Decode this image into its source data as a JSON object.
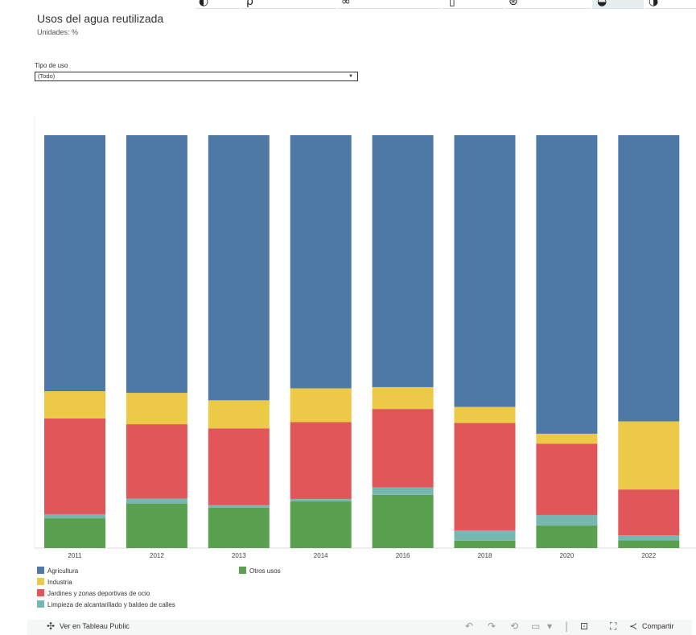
{
  "header": {
    "title": "Usos del agua reutilizada",
    "subtitle": "Unidades: %"
  },
  "filter": {
    "label": "Tipo de uso",
    "value": "(Todo)"
  },
  "legend": {
    "items": [
      {
        "label": "Agricultura",
        "color": "#4e79a7"
      },
      {
        "label": "Industria",
        "color": "#edc948"
      },
      {
        "label": "Jardines y zonas deportivas de ocio",
        "color": "#e15759"
      },
      {
        "label": "Limpieza de alcantarillado y baldeo de calles",
        "color": "#76b7b2"
      },
      {
        "label": "Otros usos",
        "color": "#59a14f"
      }
    ]
  },
  "chart_data": {
    "type": "bar",
    "stacked": true,
    "categories": [
      "2011",
      "2012",
      "2013",
      "2014",
      "2016",
      "2018",
      "2020",
      "2022"
    ],
    "ylim": [
      0,
      100
    ],
    "series": [
      {
        "name": "Otros usos",
        "color": "#59a14f",
        "values": [
          7.2,
          10.8,
          9.8,
          11.3,
          12.9,
          1.8,
          5.5,
          1.9
        ]
      },
      {
        "name": "Limpieza de alcantarillado y baldeo de calles",
        "color": "#76b7b2",
        "values": [
          1.0,
          1.2,
          0.6,
          0.6,
          1.8,
          2.5,
          2.5,
          1.2
        ]
      },
      {
        "name": "Jardines y zonas deportivas de ocio",
        "color": "#e15759",
        "values": [
          23.2,
          18.0,
          18.6,
          18.6,
          19.0,
          26.0,
          17.3,
          11.1
        ]
      },
      {
        "name": "Industria",
        "color": "#edc948",
        "values": [
          6.6,
          7.6,
          6.8,
          8.2,
          5.3,
          3.9,
          2.4,
          16.5
        ]
      },
      {
        "name": "Agricultura",
        "color": "#4e79a7",
        "values": [
          62.0,
          62.4,
          64.2,
          61.3,
          61.0,
          65.8,
          72.3,
          69.3
        ]
      }
    ]
  },
  "toolbar": {
    "view_label": "Ver en Tableau Public",
    "share_label": "Compartir"
  }
}
